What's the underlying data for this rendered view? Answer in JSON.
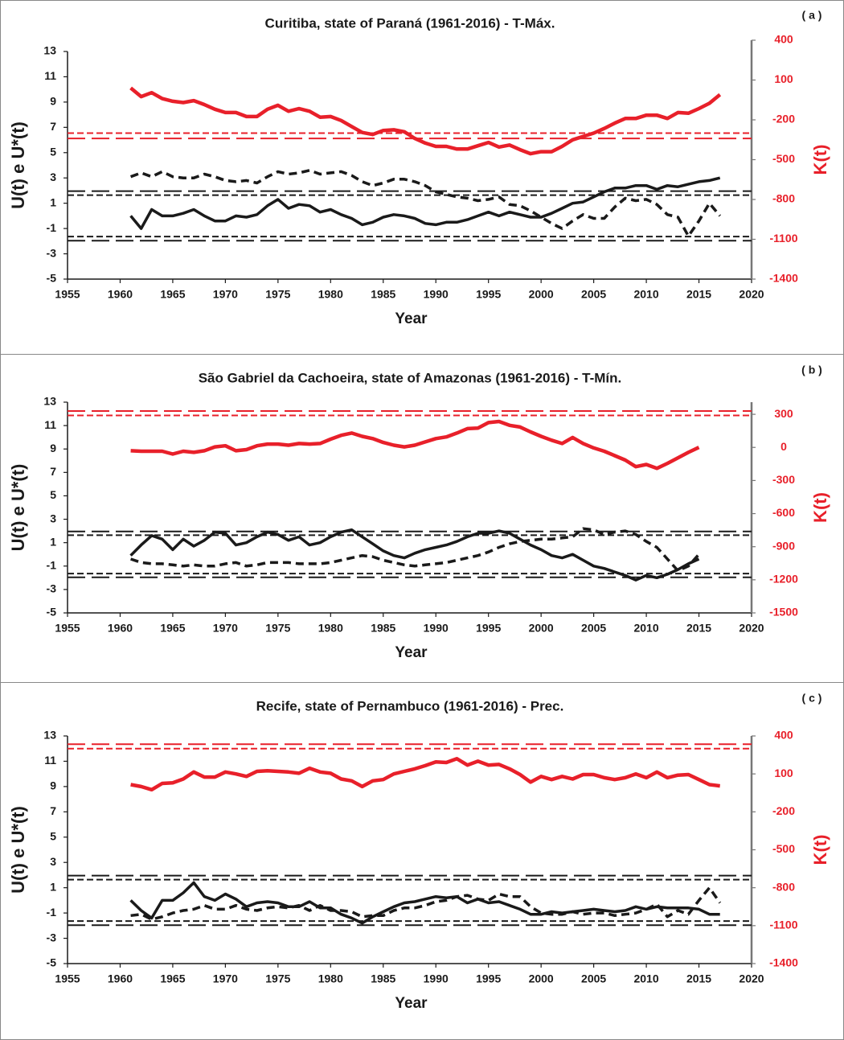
{
  "chart_data": [
    {
      "type": "line",
      "title": "Curitiba, state of Paraná  (1961-2016) - T-Máx.",
      "panel_label": "( a )",
      "x_label": "Year",
      "y_label": "U(t) e U*(t)",
      "y2_label": "K(t)",
      "xlim": [
        1955,
        2020
      ],
      "xticks": [
        1955,
        1960,
        1965,
        1970,
        1975,
        1980,
        1985,
        1990,
        1995,
        2000,
        2005,
        2010,
        2015,
        2020
      ],
      "ylim": [
        -5,
        13
      ],
      "yticks": [
        -5,
        -3,
        -1,
        1,
        3,
        5,
        7,
        9,
        11,
        13
      ],
      "y2lim": [
        -1400,
        400
      ],
      "y2ticks": [
        -1400,
        -1100,
        -800,
        -500,
        -200,
        100,
        400
      ],
      "y2_color": "#e8202a",
      "x": [
        1961,
        1962,
        1963,
        1964,
        1965,
        1966,
        1967,
        1968,
        1969,
        1970,
        1971,
        1972,
        1973,
        1974,
        1975,
        1976,
        1977,
        1978,
        1979,
        1980,
        1981,
        1982,
        1983,
        1984,
        1985,
        1986,
        1987,
        1988,
        1989,
        1990,
        1991,
        1992,
        1993,
        1994,
        1995,
        1996,
        1997,
        1998,
        1999,
        2000,
        2001,
        2002,
        2003,
        2004,
        2005,
        2006,
        2007,
        2008,
        2009,
        2010,
        2011,
        2012,
        2013,
        2014,
        2015,
        2016,
        2017
      ],
      "series": [
        {
          "color": "#1a1a1a",
          "style": "solid",
          "axis": "y",
          "values": [
            0.0,
            -1.0,
            0.5,
            0.0,
            0.0,
            0.2,
            0.5,
            0.0,
            -0.4,
            -0.4,
            0.0,
            -0.1,
            0.1,
            0.8,
            1.3,
            0.6,
            0.9,
            0.8,
            0.3,
            0.5,
            0.1,
            -0.2,
            -0.7,
            -0.5,
            -0.1,
            0.1,
            0.0,
            -0.2,
            -0.6,
            -0.7,
            -0.5,
            -0.5,
            -0.3,
            0.0,
            0.3,
            0.0,
            0.3,
            0.1,
            -0.1,
            -0.1,
            0.2,
            0.6,
            1.0,
            1.1,
            1.5,
            1.9,
            2.2,
            2.2,
            2.4,
            2.4,
            2.1,
            2.4,
            2.3,
            2.5,
            2.7,
            2.8,
            3.0
          ]
        },
        {
          "color": "#1a1a1a",
          "style": "dashed",
          "axis": "y",
          "values": [
            3.1,
            3.4,
            3.1,
            3.5,
            3.1,
            3.0,
            3.0,
            3.3,
            3.1,
            2.8,
            2.7,
            2.8,
            2.6,
            3.1,
            3.5,
            3.3,
            3.4,
            3.6,
            3.3,
            3.4,
            3.5,
            3.2,
            2.7,
            2.4,
            2.6,
            2.9,
            2.9,
            2.7,
            2.4,
            1.9,
            1.7,
            1.5,
            1.4,
            1.2,
            1.3,
            1.5,
            0.9,
            0.8,
            0.4,
            -0.1,
            -0.6,
            -1.0,
            -0.4,
            0.1,
            -0.2,
            -0.2,
            0.7,
            1.4,
            1.2,
            1.3,
            0.9,
            0.1,
            -0.1,
            -1.6,
            -0.4,
            1.0,
            0.0
          ]
        },
        {
          "color": "#e8202a",
          "style": "solid",
          "axis": "y2",
          "values": [
            40,
            -25,
            5,
            -40,
            -60,
            -70,
            -55,
            -85,
            -120,
            -145,
            -145,
            -175,
            -175,
            -120,
            -90,
            -135,
            -115,
            -135,
            -180,
            -175,
            -205,
            -250,
            -295,
            -310,
            -280,
            -275,
            -290,
            -340,
            -375,
            -400,
            -400,
            -420,
            -420,
            -395,
            -370,
            -405,
            -390,
            -425,
            -455,
            -440,
            -440,
            -400,
            -350,
            -325,
            -300,
            -265,
            -225,
            -190,
            -190,
            -165,
            -165,
            -190,
            -145,
            -150,
            -115,
            -75,
            -10
          ]
        }
      ],
      "reference_lines": [
        {
          "value": 1.96,
          "axis": "y",
          "dash": "long",
          "color": "#1a1a1a"
        },
        {
          "value": 1.64,
          "axis": "y",
          "dash": "short",
          "color": "#1a1a1a"
        },
        {
          "value": -1.64,
          "axis": "y",
          "dash": "short",
          "color": "#1a1a1a"
        },
        {
          "value": -1.96,
          "axis": "y",
          "dash": "long",
          "color": "#1a1a1a"
        },
        {
          "value": -300,
          "axis": "y2",
          "dash": "short",
          "color": "#e8202a"
        },
        {
          "value": -340,
          "axis": "y2",
          "dash": "long",
          "color": "#e8202a"
        }
      ]
    },
    {
      "type": "line",
      "title": "São Gabriel da Cachoeira, state of Amazonas (1961-2016) - T-Mín.",
      "panel_label": "( b )",
      "x_label": "Year",
      "y_label": "U(t) e U*(t)",
      "y2_label": "K(t)",
      "xlim": [
        1955,
        2020
      ],
      "xticks": [
        1955,
        1960,
        1965,
        1970,
        1975,
        1980,
        1985,
        1990,
        1995,
        2000,
        2005,
        2010,
        2015,
        2020
      ],
      "ylim": [
        -5,
        13
      ],
      "yticks": [
        -5,
        -3,
        -1,
        1,
        3,
        5,
        7,
        9,
        11,
        13
      ],
      "y2lim": [
        -1500,
        410
      ],
      "y2ticks": [
        -1500,
        -1200,
        -900,
        -600,
        -300,
        0,
        300
      ],
      "y2_color": "#e8202a",
      "x": [
        1961,
        1962,
        1963,
        1964,
        1965,
        1966,
        1967,
        1968,
        1969,
        1970,
        1971,
        1972,
        1973,
        1974,
        1975,
        1976,
        1977,
        1978,
        1979,
        1980,
        1981,
        1982,
        1983,
        1984,
        1985,
        1986,
        1987,
        1988,
        1989,
        1990,
        1991,
        1992,
        1993,
        1994,
        1995,
        1996,
        1997,
        1998,
        1999,
        2000,
        2001,
        2002,
        2003,
        2004,
        2005,
        2006,
        2007,
        2008,
        2009,
        2010,
        2011,
        2012,
        2013,
        2014,
        2015
      ],
      "series": [
        {
          "color": "#1a1a1a",
          "style": "solid",
          "axis": "y",
          "values": [
            -0.1,
            0.8,
            1.6,
            1.3,
            0.4,
            1.3,
            0.7,
            1.2,
            1.9,
            1.8,
            0.8,
            1.0,
            1.5,
            1.9,
            1.7,
            1.2,
            1.5,
            0.8,
            1.0,
            1.5,
            1.9,
            2.1,
            1.5,
            0.9,
            0.3,
            -0.1,
            -0.3,
            0.1,
            0.4,
            0.6,
            0.8,
            1.1,
            1.5,
            1.8,
            1.8,
            2.0,
            1.8,
            1.3,
            0.8,
            0.4,
            -0.1,
            -0.3,
            0.0,
            -0.5,
            -1.0,
            -1.2,
            -1.5,
            -1.8,
            -2.2,
            -1.8,
            -2.0,
            -1.7,
            -1.3,
            -0.8,
            -0.4
          ]
        },
        {
          "color": "#1a1a1a",
          "style": "dashed",
          "axis": "y",
          "values": [
            -0.4,
            -0.7,
            -0.8,
            -0.8,
            -0.9,
            -1.0,
            -0.9,
            -1.0,
            -1.0,
            -0.8,
            -0.7,
            -1.0,
            -0.9,
            -0.7,
            -0.7,
            -0.7,
            -0.8,
            -0.8,
            -0.8,
            -0.7,
            -0.5,
            -0.3,
            -0.1,
            -0.2,
            -0.5,
            -0.7,
            -0.9,
            -1.0,
            -0.9,
            -0.8,
            -0.7,
            -0.5,
            -0.3,
            -0.1,
            0.2,
            0.6,
            0.9,
            1.1,
            1.2,
            1.3,
            1.3,
            1.4,
            1.5,
            2.2,
            2.1,
            1.7,
            1.9,
            2.0,
            1.7,
            1.1,
            0.6,
            -0.4,
            -1.4,
            -1.0,
            0.0
          ]
        },
        {
          "color": "#e8202a",
          "style": "solid",
          "axis": "y2",
          "values": [
            -30,
            -35,
            -35,
            -35,
            -60,
            -35,
            -45,
            -30,
            5,
            15,
            -30,
            -20,
            15,
            30,
            30,
            20,
            35,
            30,
            35,
            75,
            110,
            130,
            100,
            80,
            45,
            20,
            5,
            20,
            50,
            80,
            95,
            130,
            170,
            175,
            225,
            235,
            200,
            185,
            140,
            100,
            65,
            35,
            90,
            35,
            -5,
            -35,
            -75,
            -115,
            -175,
            -155,
            -190,
            -145,
            -95,
            -45,
            0
          ]
        }
      ],
      "reference_lines": [
        {
          "value": 1.96,
          "axis": "y",
          "dash": "long",
          "color": "#1a1a1a"
        },
        {
          "value": 1.64,
          "axis": "y",
          "dash": "short",
          "color": "#1a1a1a"
        },
        {
          "value": -1.64,
          "axis": "y",
          "dash": "short",
          "color": "#1a1a1a"
        },
        {
          "value": -1.96,
          "axis": "y",
          "dash": "long",
          "color": "#1a1a1a"
        },
        {
          "value": 330,
          "axis": "y2",
          "dash": "long",
          "color": "#e8202a"
        },
        {
          "value": 290,
          "axis": "y2",
          "dash": "short",
          "color": "#e8202a"
        }
      ]
    },
    {
      "type": "line",
      "title": "Recife, state of Pernambuco (1961-2016) - Prec.",
      "panel_label": "( c )",
      "x_label": "Year",
      "y_label": "U(t) e U*(t)",
      "y2_label": "K(t)",
      "xlim": [
        1955,
        2020
      ],
      "xticks": [
        1955,
        1960,
        1965,
        1970,
        1975,
        1980,
        1985,
        1990,
        1995,
        2000,
        2005,
        2010,
        2015,
        2020
      ],
      "ylim": [
        -5,
        13
      ],
      "yticks": [
        -5,
        -3,
        -1,
        1,
        3,
        5,
        7,
        9,
        11,
        13
      ],
      "y2lim": [
        -1400,
        400
      ],
      "y2ticks": [
        -1400,
        -1100,
        -800,
        -500,
        -200,
        100,
        400
      ],
      "y2_color": "#e8202a",
      "x": [
        1961,
        1962,
        1963,
        1964,
        1965,
        1966,
        1967,
        1968,
        1969,
        1970,
        1971,
        1972,
        1973,
        1974,
        1975,
        1976,
        1977,
        1978,
        1979,
        1980,
        1981,
        1982,
        1983,
        1984,
        1985,
        1986,
        1987,
        1988,
        1989,
        1990,
        1991,
        1992,
        1993,
        1994,
        1995,
        1996,
        1997,
        1998,
        1999,
        2000,
        2001,
        2002,
        2003,
        2004,
        2005,
        2006,
        2007,
        2008,
        2009,
        2010,
        2011,
        2012,
        2013,
        2014,
        2015,
        2016,
        2017
      ],
      "series": [
        {
          "color": "#1a1a1a",
          "style": "solid",
          "axis": "y",
          "values": [
            0.0,
            -0.8,
            -1.4,
            0.0,
            0.0,
            0.6,
            1.4,
            0.3,
            0.0,
            0.5,
            0.1,
            -0.5,
            -0.2,
            -0.1,
            -0.2,
            -0.5,
            -0.5,
            -0.1,
            -0.6,
            -0.6,
            -1.1,
            -1.4,
            -1.8,
            -1.3,
            -0.9,
            -0.5,
            -0.2,
            -0.1,
            0.1,
            0.3,
            0.2,
            0.3,
            -0.2,
            0.1,
            -0.2,
            -0.1,
            -0.4,
            -0.7,
            -1.1,
            -1.1,
            -0.9,
            -1.0,
            -0.9,
            -0.8,
            -0.7,
            -0.8,
            -0.9,
            -0.8,
            -0.5,
            -0.7,
            -0.5,
            -0.6,
            -0.6,
            -0.6,
            -0.7,
            -1.1,
            -1.1
          ]
        },
        {
          "color": "#1a1a1a",
          "style": "dashed",
          "axis": "y",
          "values": [
            -1.2,
            -1.1,
            -1.5,
            -1.3,
            -1.0,
            -0.8,
            -0.7,
            -0.4,
            -0.7,
            -0.7,
            -0.4,
            -0.7,
            -0.8,
            -0.6,
            -0.5,
            -0.6,
            -0.4,
            -0.8,
            -0.4,
            -0.8,
            -0.8,
            -0.9,
            -1.3,
            -1.2,
            -1.2,
            -0.8,
            -0.6,
            -0.6,
            -0.4,
            -0.1,
            0.0,
            0.3,
            0.4,
            0.1,
            0.0,
            0.5,
            0.3,
            0.3,
            -0.5,
            -1.0,
            -1.1,
            -1.1,
            -0.9,
            -1.1,
            -1.0,
            -1.0,
            -1.2,
            -1.1,
            -1.0,
            -0.7,
            -0.3,
            -1.3,
            -0.8,
            -1.1,
            0.0,
            1.0,
            -0.2
          ]
        },
        {
          "color": "#e8202a",
          "style": "solid",
          "axis": "y2",
          "values": [
            15,
            0,
            -25,
            25,
            30,
            60,
            115,
            75,
            75,
            115,
            100,
            80,
            120,
            125,
            120,
            115,
            105,
            145,
            115,
            105,
            60,
            45,
            0,
            45,
            55,
            100,
            120,
            140,
            165,
            195,
            190,
            220,
            170,
            200,
            170,
            175,
            140,
            95,
            35,
            80,
            55,
            80,
            60,
            95,
            95,
            70,
            55,
            70,
            100,
            70,
            115,
            70,
            90,
            95,
            55,
            15,
            5
          ]
        }
      ],
      "reference_lines": [
        {
          "value": 1.96,
          "axis": "y",
          "dash": "long",
          "color": "#1a1a1a"
        },
        {
          "value": 1.64,
          "axis": "y",
          "dash": "short",
          "color": "#1a1a1a"
        },
        {
          "value": -1.64,
          "axis": "y",
          "dash": "short",
          "color": "#1a1a1a"
        },
        {
          "value": -1.96,
          "axis": "y",
          "dash": "long",
          "color": "#1a1a1a"
        },
        {
          "value": 335,
          "axis": "y2",
          "dash": "long",
          "color": "#e8202a"
        },
        {
          "value": 300,
          "axis": "y2",
          "dash": "short",
          "color": "#e8202a"
        }
      ]
    }
  ]
}
